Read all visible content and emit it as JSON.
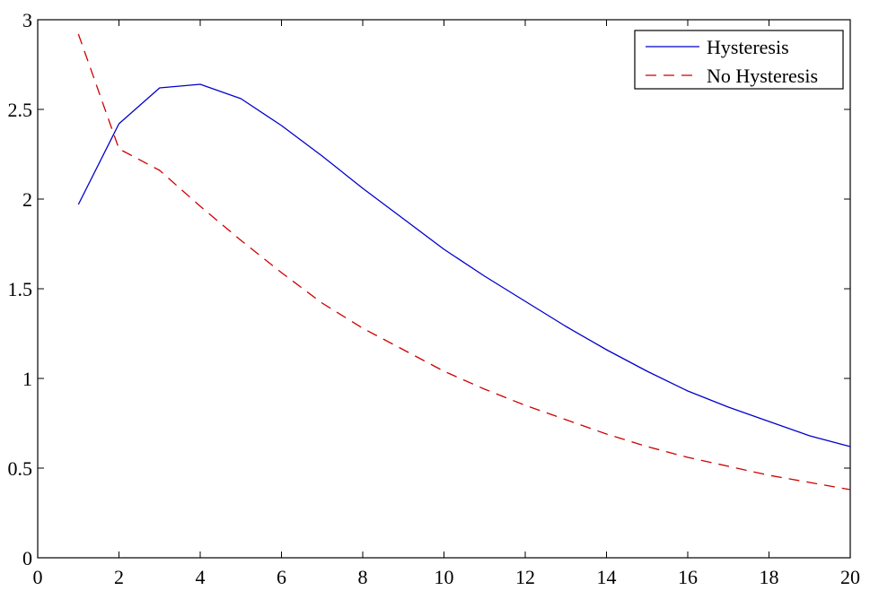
{
  "chart_data": {
    "type": "line",
    "title": "",
    "xlabel": "",
    "ylabel": "",
    "xlim": [
      0,
      20
    ],
    "ylim": [
      0,
      3
    ],
    "xticks": [
      0,
      2,
      4,
      6,
      8,
      10,
      12,
      14,
      16,
      18,
      20
    ],
    "xtick_labels": [
      "0",
      "2",
      "4",
      "6",
      "8",
      "10",
      "12",
      "14",
      "16",
      "18",
      "20"
    ],
    "yticks": [
      0,
      0.5,
      1,
      1.5,
      2,
      2.5,
      3
    ],
    "ytick_labels": [
      "0",
      "0.5",
      "1",
      "1.5",
      "2",
      "2.5",
      "3"
    ],
    "grid": false,
    "legend_position": "top-right",
    "series": [
      {
        "name": "Hysteresis",
        "color": "#0000cc",
        "style": "solid",
        "x": [
          1,
          2,
          3,
          4,
          5,
          6,
          7,
          8,
          9,
          10,
          11,
          12,
          13,
          14,
          15,
          16,
          17,
          18,
          19,
          20
        ],
        "y": [
          1.97,
          2.42,
          2.62,
          2.64,
          2.56,
          2.41,
          2.24,
          2.06,
          1.89,
          1.72,
          1.57,
          1.43,
          1.29,
          1.16,
          1.04,
          0.93,
          0.84,
          0.76,
          0.68,
          0.62
        ]
      },
      {
        "name": "No Hysteresis",
        "color": "#cc0000",
        "style": "dashed",
        "x": [
          1,
          2,
          3,
          4,
          5,
          6,
          7,
          8,
          9,
          10,
          11,
          12,
          13,
          14,
          15,
          16,
          17,
          18,
          19,
          20
        ],
        "y": [
          2.92,
          2.28,
          2.16,
          1.96,
          1.77,
          1.59,
          1.42,
          1.28,
          1.16,
          1.04,
          0.94,
          0.85,
          0.77,
          0.69,
          0.62,
          0.56,
          0.51,
          0.46,
          0.42,
          0.38
        ]
      }
    ]
  }
}
